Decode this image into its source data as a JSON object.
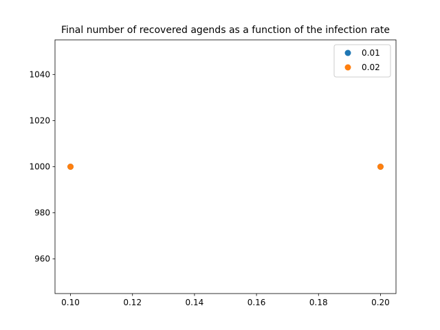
{
  "chart_data": {
    "type": "scatter",
    "title": "Final number of recovered agends as a function of the infection rate",
    "xlabel": "",
    "ylabel": "",
    "xlim": [
      0.095,
      0.205
    ],
    "ylim": [
      945,
      1055
    ],
    "xticks": [
      0.1,
      0.12,
      0.14,
      0.16,
      0.18,
      0.2
    ],
    "xtick_labels": [
      "0.10",
      "0.12",
      "0.14",
      "0.16",
      "0.18",
      "0.20"
    ],
    "yticks": [
      960,
      980,
      1000,
      1020,
      1040
    ],
    "ytick_labels": [
      "960",
      "980",
      "1000",
      "1020",
      "1040"
    ],
    "grid": false,
    "legend_position": "top-right",
    "series": [
      {
        "name": "0.01",
        "color": "#1f77b4",
        "x": [
          0.1,
          0.2
        ],
        "y": [
          1000,
          1000
        ]
      },
      {
        "name": "0.02",
        "color": "#ff7f0e",
        "x": [
          0.1,
          0.2
        ],
        "y": [
          1000,
          1000
        ]
      }
    ]
  }
}
